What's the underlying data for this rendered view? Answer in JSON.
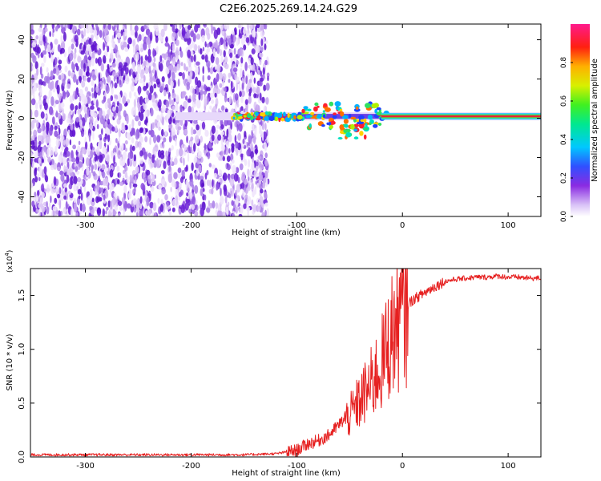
{
  "title": "C2E6.2025.269.14.24.G29",
  "chart_data": [
    {
      "type": "heatmap",
      "xlabel": "Height of straight line (km)",
      "ylabel": "Frequency (Hz)",
      "xlim": [
        -352,
        131
      ],
      "ylim": [
        -50,
        48
      ],
      "xticks": [
        -300,
        -200,
        -100,
        0,
        100
      ],
      "xtick_labels": [
        "-300",
        "-200",
        "-100",
        "0",
        "100"
      ],
      "yticks": [
        -40,
        -20,
        0,
        20,
        40
      ],
      "ytick_labels": [
        "-40",
        "-20",
        "0",
        "20",
        "40"
      ],
      "colorbar": {
        "label": "Normalized spectral amplitude",
        "range": [
          0.0,
          1.0
        ],
        "ticks": [
          0.0,
          0.2,
          0.4,
          0.6,
          0.8
        ],
        "tick_labels": [
          "0.0",
          "0.2",
          "0.4",
          "0.6",
          "0.8"
        ],
        "colormap": "rainbow (white-purple-blue-cyan-green-yellow-red-magenta)"
      },
      "description_values": {
        "noise_region_x": [
          -352,
          -130
        ],
        "signal_start_x": -215,
        "carrier_frequency_hz": 1,
        "strong_carrier_x": [
          -20,
          131
        ]
      }
    },
    {
      "type": "line",
      "xlabel": "Height of straight line (km)",
      "ylabel": "SNR (10 * v/v)",
      "multiplier_label": "(x10",
      "multiplier_exp": "4",
      "multiplier_close": ")",
      "xlim": [
        -352,
        131
      ],
      "ylim": [
        0,
        1.75
      ],
      "xticks": [
        -300,
        -200,
        -100,
        0,
        100
      ],
      "xtick_labels": [
        "-300",
        "-200",
        "-100",
        "0",
        "100"
      ],
      "yticks": [
        0.0,
        0.5,
        1.0,
        1.5
      ],
      "ytick_labels": [
        "0.0",
        "0.5",
        "1.0",
        "1.5"
      ],
      "series": [
        {
          "name": "SNR",
          "color": "#e62020",
          "x": [
            -352,
            -300,
            -250,
            -200,
            -150,
            -120,
            -100,
            -90,
            -80,
            -70,
            -60,
            -50,
            -40,
            -30,
            -20,
            -15,
            -10,
            -5,
            0,
            10,
            20,
            30,
            40,
            50,
            60,
            70,
            80,
            90,
            100,
            110,
            120,
            131
          ],
          "y": [
            0.02,
            0.02,
            0.02,
            0.02,
            0.02,
            0.03,
            0.06,
            0.12,
            0.15,
            0.2,
            0.3,
            0.4,
            0.55,
            0.7,
            0.9,
            1.05,
            1.2,
            1.3,
            1.38,
            1.46,
            1.52,
            1.58,
            1.63,
            1.65,
            1.66,
            1.67,
            1.67,
            1.68,
            1.67,
            1.67,
            1.66,
            1.66
          ]
        }
      ]
    }
  ],
  "colors": {
    "line": "#e62020",
    "noise": "#7b3fd9",
    "carrier_core": "#e8203a"
  }
}
